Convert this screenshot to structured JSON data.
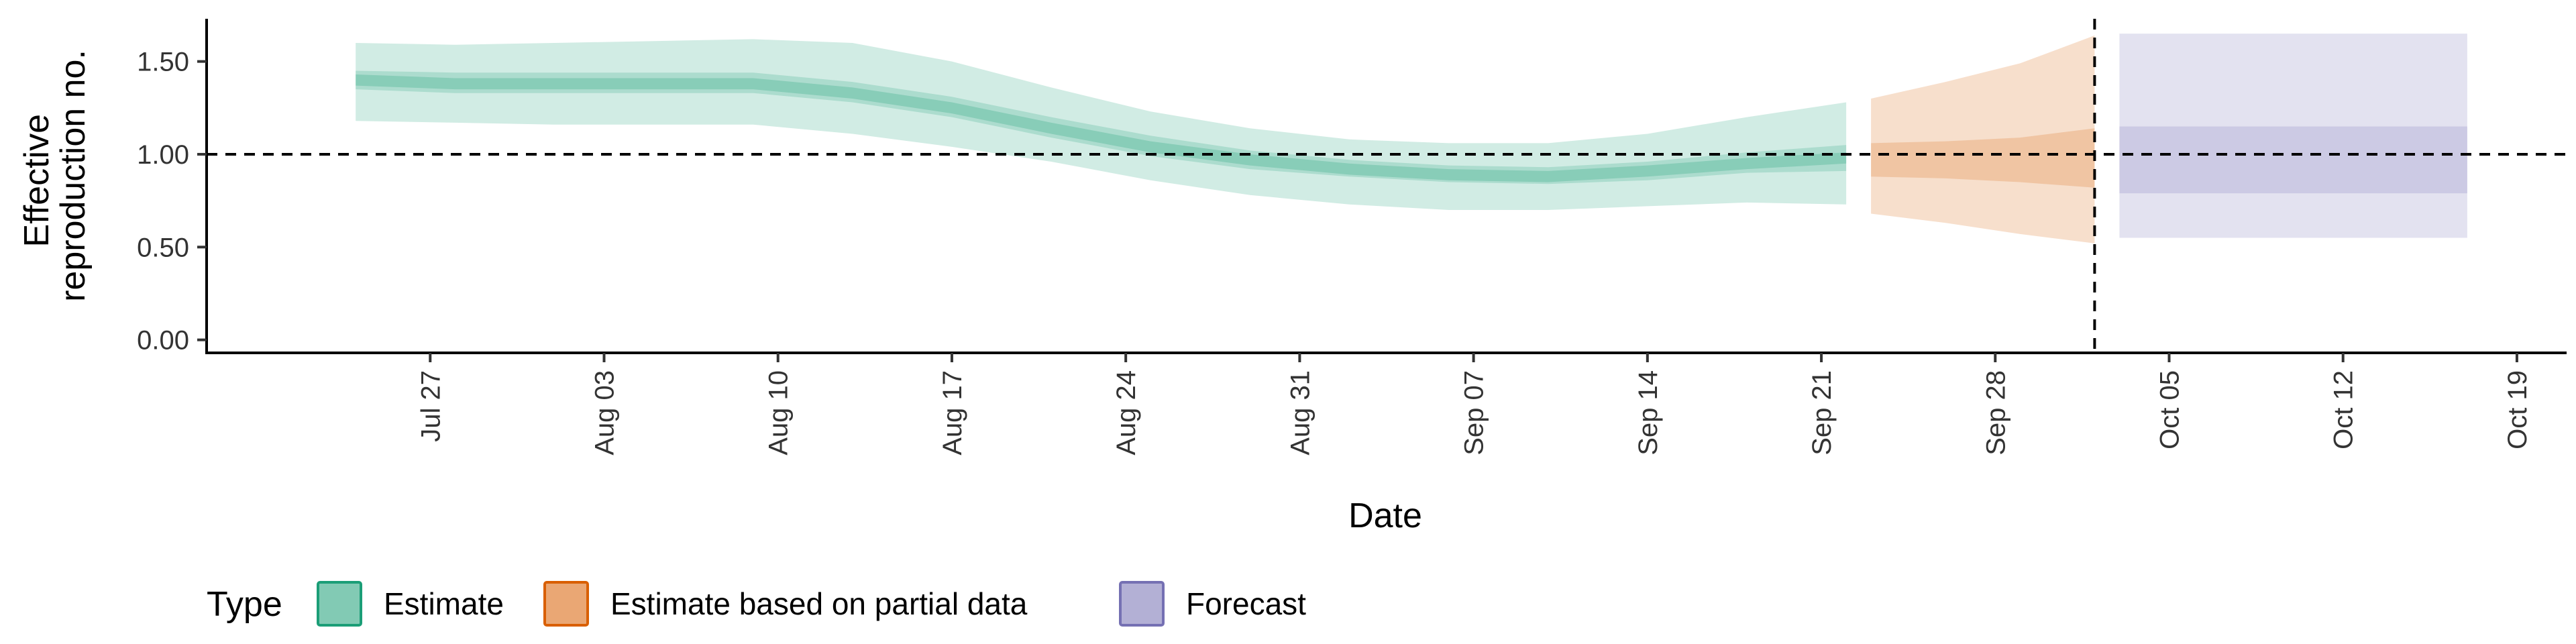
{
  "chart_data": {
    "type": "area",
    "xlabel": "Date",
    "ylabel_lines": [
      "Effective",
      "reproduction no."
    ],
    "y_ticks": [
      "0.00",
      "0.50",
      "1.00",
      "1.50"
    ],
    "y_tick_values": [
      0,
      0.5,
      1.0,
      1.5
    ],
    "ylim": [
      -0.07,
      1.73
    ],
    "xlim": [
      "2020-07-18",
      "2020-10-21"
    ],
    "x_ticks": [
      {
        "date": "2020-07-27",
        "label": "Jul 27"
      },
      {
        "date": "2020-08-03",
        "label": "Aug 03"
      },
      {
        "date": "2020-08-10",
        "label": "Aug 10"
      },
      {
        "date": "2020-08-17",
        "label": "Aug 17"
      },
      {
        "date": "2020-08-24",
        "label": "Aug 24"
      },
      {
        "date": "2020-08-31",
        "label": "Aug 31"
      },
      {
        "date": "2020-09-07",
        "label": "Sep 07"
      },
      {
        "date": "2020-09-14",
        "label": "Sep 14"
      },
      {
        "date": "2020-09-21",
        "label": "Sep 21"
      },
      {
        "date": "2020-09-28",
        "label": "Sep 28"
      },
      {
        "date": "2020-10-05",
        "label": "Oct 05"
      },
      {
        "date": "2020-10-12",
        "label": "Oct 12"
      },
      {
        "date": "2020-10-19",
        "label": "Oct 19"
      }
    ],
    "reference_line_y": 1.0,
    "vertical_line_x": "2020-10-02",
    "legend_title": "Type",
    "series": [
      {
        "name": "Estimate",
        "color": "#1b9e77",
        "points": [
          {
            "x": "2020-07-24",
            "median": 1.4,
            "lo50": 1.35,
            "hi50": 1.45,
            "lo90": 1.18,
            "hi90": 1.6
          },
          {
            "x": "2020-07-28",
            "median": 1.38,
            "lo50": 1.33,
            "hi50": 1.44,
            "lo90": 1.17,
            "hi90": 1.59
          },
          {
            "x": "2020-08-01",
            "median": 1.38,
            "lo50": 1.33,
            "hi50": 1.44,
            "lo90": 1.16,
            "hi90": 1.6
          },
          {
            "x": "2020-08-05",
            "median": 1.38,
            "lo50": 1.33,
            "hi50": 1.44,
            "lo90": 1.16,
            "hi90": 1.61
          },
          {
            "x": "2020-08-09",
            "median": 1.38,
            "lo50": 1.33,
            "hi50": 1.44,
            "lo90": 1.16,
            "hi90": 1.62
          },
          {
            "x": "2020-08-13",
            "median": 1.33,
            "lo50": 1.28,
            "hi50": 1.39,
            "lo90": 1.11,
            "hi90": 1.6
          },
          {
            "x": "2020-08-17",
            "median": 1.25,
            "lo50": 1.2,
            "hi50": 1.31,
            "lo90": 1.04,
            "hi90": 1.5
          },
          {
            "x": "2020-08-21",
            "median": 1.14,
            "lo50": 1.09,
            "hi50": 1.2,
            "lo90": 0.96,
            "hi90": 1.36
          },
          {
            "x": "2020-08-25",
            "median": 1.04,
            "lo50": 0.99,
            "hi50": 1.1,
            "lo90": 0.86,
            "hi90": 1.23
          },
          {
            "x": "2020-08-29",
            "median": 0.97,
            "lo50": 0.92,
            "hi50": 1.02,
            "lo90": 0.78,
            "hi90": 1.14
          },
          {
            "x": "2020-09-02",
            "median": 0.92,
            "lo50": 0.88,
            "hi50": 0.97,
            "lo90": 0.73,
            "hi90": 1.08
          },
          {
            "x": "2020-09-06",
            "median": 0.89,
            "lo50": 0.85,
            "hi50": 0.94,
            "lo90": 0.7,
            "hi90": 1.06
          },
          {
            "x": "2020-09-10",
            "median": 0.88,
            "lo50": 0.84,
            "hi50": 0.93,
            "lo90": 0.7,
            "hi90": 1.06
          },
          {
            "x": "2020-09-14",
            "median": 0.91,
            "lo50": 0.86,
            "hi50": 0.96,
            "lo90": 0.72,
            "hi90": 1.11
          },
          {
            "x": "2020-09-18",
            "median": 0.95,
            "lo50": 0.9,
            "hi50": 1.01,
            "lo90": 0.74,
            "hi90": 1.2
          },
          {
            "x": "2020-09-22",
            "median": 0.98,
            "lo50": 0.91,
            "hi50": 1.05,
            "lo90": 0.73,
            "hi90": 1.28
          }
        ]
      },
      {
        "name": "Estimate based on partial data",
        "color": "#d95f02",
        "points": [
          {
            "x": "2020-09-23",
            "median": 0.97,
            "lo50": 0.88,
            "hi50": 1.06,
            "lo90": 0.68,
            "hi90": 1.3
          },
          {
            "x": "2020-09-26",
            "median": 0.97,
            "lo50": 0.87,
            "hi50": 1.07,
            "lo90": 0.63,
            "hi90": 1.39
          },
          {
            "x": "2020-09-29",
            "median": 0.96,
            "lo50": 0.85,
            "hi50": 1.09,
            "lo90": 0.57,
            "hi90": 1.49
          },
          {
            "x": "2020-10-02",
            "median": 0.96,
            "lo50": 0.82,
            "hi50": 1.14,
            "lo90": 0.52,
            "hi90": 1.64
          }
        ]
      },
      {
        "name": "Forecast",
        "color": "#7570b3",
        "points": [
          {
            "x": "2020-10-03",
            "median": 0.96,
            "lo50": 0.79,
            "hi50": 1.15,
            "lo90": 0.55,
            "hi90": 1.65
          },
          {
            "x": "2020-10-17",
            "median": 0.96,
            "lo50": 0.79,
            "hi50": 1.15,
            "lo90": 0.55,
            "hi90": 1.65
          }
        ]
      }
    ]
  }
}
